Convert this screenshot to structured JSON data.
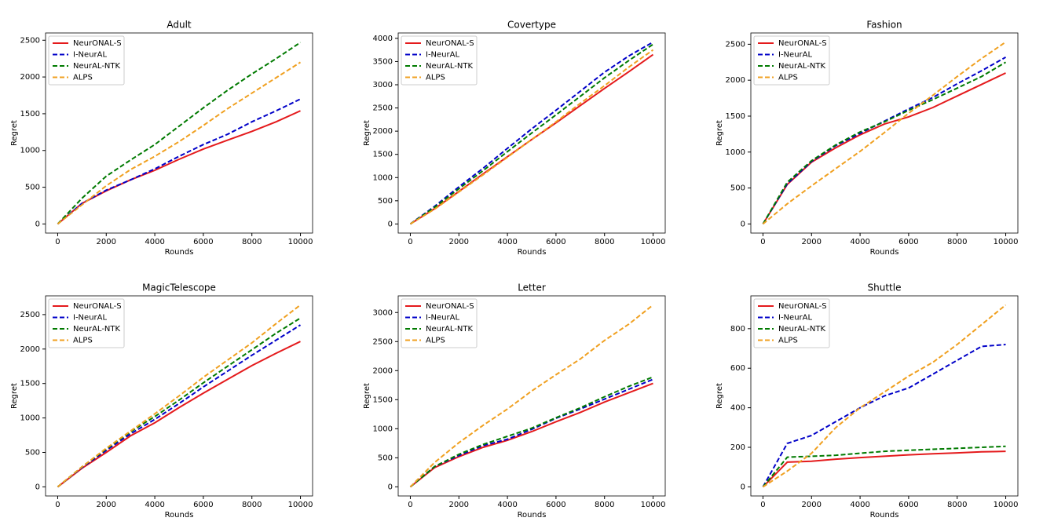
{
  "chart_data": [
    {
      "type": "line",
      "title": "Adult",
      "x_label": "Rounds",
      "y_label": "Regret",
      "x": [
        0,
        1000,
        2000,
        3000,
        4000,
        5000,
        6000,
        7000,
        8000,
        9000,
        10000
      ],
      "xlim": [
        -500,
        10500
      ],
      "xticks": [
        0,
        2000,
        4000,
        6000,
        8000,
        10000
      ],
      "ylim": [
        -124,
        2599
      ],
      "yticks": [
        0,
        500,
        1000,
        1500,
        2000,
        2500
      ],
      "legend": "upper left",
      "series": [
        {
          "name": "NeurONAL-S",
          "color": "#e41a1c",
          "linestyle": "solid",
          "values": [
            0,
            280,
            450,
            600,
            730,
            880,
            1020,
            1140,
            1260,
            1390,
            1540
          ]
        },
        {
          "name": "I-NeurAL",
          "color": "#0000c8",
          "linestyle": "dashed",
          "values": [
            0,
            280,
            460,
            600,
            750,
            920,
            1080,
            1220,
            1390,
            1540,
            1700
          ]
        },
        {
          "name": "NeurAL-NTK",
          "color": "#007a00",
          "linestyle": "dashed",
          "values": [
            0,
            350,
            650,
            870,
            1080,
            1330,
            1580,
            1820,
            2040,
            2250,
            2470
          ]
        },
        {
          "name": "ALPS",
          "color": "#f0a020",
          "linestyle": "dashed",
          "values": [
            0,
            260,
            520,
            740,
            920,
            1120,
            1340,
            1570,
            1780,
            1990,
            2200
          ]
        }
      ]
    },
    {
      "type": "line",
      "title": "Covertype",
      "x_label": "Rounds",
      "y_label": "Regret",
      "x": [
        0,
        1000,
        2000,
        3000,
        4000,
        5000,
        6000,
        7000,
        8000,
        9000,
        10000
      ],
      "xlim": [
        -500,
        10500
      ],
      "xticks": [
        0,
        2000,
        4000,
        6000,
        8000,
        10000
      ],
      "ylim": [
        -196,
        4116
      ],
      "yticks": [
        0,
        500,
        1000,
        1500,
        2000,
        2500,
        3000,
        3500,
        4000
      ],
      "legend": "upper left",
      "series": [
        {
          "name": "NeurONAL-S",
          "color": "#e41a1c",
          "linestyle": "solid",
          "values": [
            0,
            330,
            700,
            1080,
            1450,
            1820,
            2180,
            2550,
            2920,
            3280,
            3650
          ]
        },
        {
          "name": "I-NeurAL",
          "color": "#0000c8",
          "linestyle": "dashed",
          "values": [
            0,
            380,
            800,
            1200,
            1630,
            2050,
            2450,
            2860,
            3270,
            3620,
            3920
          ]
        },
        {
          "name": "NeurAL-NTK",
          "color": "#007a00",
          "linestyle": "dashed",
          "values": [
            0,
            360,
            760,
            1150,
            1560,
            1960,
            2350,
            2750,
            3150,
            3520,
            3870
          ]
        },
        {
          "name": "ALPS",
          "color": "#f0a020",
          "linestyle": "dashed",
          "values": [
            0,
            320,
            690,
            1060,
            1440,
            1820,
            2200,
            2600,
            2980,
            3380,
            3750
          ]
        }
      ]
    },
    {
      "type": "line",
      "title": "Fashion",
      "x_label": "Rounds",
      "y_label": "Regret",
      "x": [
        0,
        1000,
        2000,
        3000,
        4000,
        5000,
        6000,
        7000,
        8000,
        9000,
        10000
      ],
      "xlim": [
        -500,
        10500
      ],
      "xticks": [
        0,
        2000,
        4000,
        6000,
        8000,
        10000
      ],
      "ylim": [
        -127,
        2657
      ],
      "yticks": [
        0,
        500,
        1000,
        1500,
        2000,
        2500
      ],
      "legend": "upper left",
      "series": [
        {
          "name": "NeurONAL-S",
          "color": "#e41a1c",
          "linestyle": "solid",
          "values": [
            0,
            550,
            860,
            1060,
            1240,
            1390,
            1490,
            1620,
            1780,
            1940,
            2100
          ]
        },
        {
          "name": "I-NeurAL",
          "color": "#0000c8",
          "linestyle": "dashed",
          "values": [
            0,
            560,
            870,
            1090,
            1260,
            1430,
            1600,
            1760,
            1950,
            2130,
            2320
          ]
        },
        {
          "name": "NeurAL-NTK",
          "color": "#007a00",
          "linestyle": "dashed",
          "values": [
            0,
            580,
            880,
            1100,
            1280,
            1420,
            1580,
            1730,
            1890,
            2050,
            2250
          ]
        },
        {
          "name": "ALPS",
          "color": "#f0a020",
          "linestyle": "dashed",
          "values": [
            0,
            280,
            530,
            770,
            1010,
            1270,
            1540,
            1790,
            2050,
            2300,
            2530
          ]
        }
      ]
    },
    {
      "type": "line",
      "title": "MagicTelescope",
      "x_label": "Rounds",
      "y_label": "Regret",
      "x": [
        0,
        1000,
        2000,
        3000,
        4000,
        5000,
        6000,
        7000,
        8000,
        9000,
        10000
      ],
      "xlim": [
        -500,
        10500
      ],
      "xticks": [
        0,
        2000,
        4000,
        6000,
        8000,
        10000
      ],
      "ylim": [
        -132,
        2772
      ],
      "yticks": [
        0,
        500,
        1000,
        1500,
        2000,
        2500
      ],
      "legend": "upper left",
      "series": [
        {
          "name": "NeurONAL-S",
          "color": "#e41a1c",
          "linestyle": "solid",
          "values": [
            0,
            270,
            500,
            740,
            930,
            1150,
            1360,
            1560,
            1760,
            1940,
            2110
          ]
        },
        {
          "name": "I-NeurAL",
          "color": "#0000c8",
          "linestyle": "dashed",
          "values": [
            0,
            280,
            530,
            770,
            980,
            1210,
            1450,
            1680,
            1910,
            2130,
            2350
          ]
        },
        {
          "name": "NeurAL-NTK",
          "color": "#007a00",
          "linestyle": "dashed",
          "values": [
            0,
            290,
            550,
            800,
            1020,
            1260,
            1510,
            1750,
            1990,
            2230,
            2450
          ]
        },
        {
          "name": "ALPS",
          "color": "#f0a020",
          "linestyle": "dashed",
          "values": [
            0,
            290,
            560,
            810,
            1060,
            1320,
            1590,
            1840,
            2090,
            2370,
            2640
          ]
        }
      ]
    },
    {
      "type": "line",
      "title": "Letter",
      "x_label": "Rounds",
      "y_label": "Regret",
      "x": [
        0,
        1000,
        2000,
        3000,
        4000,
        5000,
        6000,
        7000,
        8000,
        9000,
        10000
      ],
      "xlim": [
        -500,
        10500
      ],
      "xticks": [
        0,
        2000,
        4000,
        6000,
        8000,
        10000
      ],
      "ylim": [
        -157,
        3287
      ],
      "yticks": [
        0,
        500,
        1000,
        1500,
        2000,
        2500,
        3000
      ],
      "legend": "upper left",
      "series": [
        {
          "name": "NeurONAL-S",
          "color": "#e41a1c",
          "linestyle": "solid",
          "values": [
            0,
            330,
            520,
            680,
            800,
            950,
            1120,
            1280,
            1460,
            1620,
            1780
          ]
        },
        {
          "name": "I-NeurAL",
          "color": "#0000c8",
          "linestyle": "dashed",
          "values": [
            0,
            350,
            540,
            710,
            820,
            990,
            1180,
            1340,
            1510,
            1680,
            1850
          ]
        },
        {
          "name": "NeurAL-NTK",
          "color": "#007a00",
          "linestyle": "dashed",
          "values": [
            0,
            350,
            560,
            730,
            870,
            1010,
            1190,
            1360,
            1550,
            1730,
            1890
          ]
        },
        {
          "name": "ALPS",
          "color": "#f0a020",
          "linestyle": "dashed",
          "values": [
            0,
            420,
            760,
            1060,
            1340,
            1650,
            1930,
            2200,
            2520,
            2800,
            3130
          ]
        }
      ]
    },
    {
      "type": "line",
      "title": "Shuttle",
      "x_label": "Rounds",
      "y_label": "Regret",
      "x": [
        0,
        1000,
        2000,
        3000,
        4000,
        5000,
        6000,
        7000,
        8000,
        9000,
        10000
      ],
      "xlim": [
        -500,
        10500
      ],
      "xticks": [
        0,
        2000,
        4000,
        6000,
        8000,
        10000
      ],
      "ylim": [
        -46,
        966
      ],
      "yticks": [
        0,
        200,
        400,
        600,
        800
      ],
      "legend": "upper left",
      "series": [
        {
          "name": "NeurONAL-S",
          "color": "#e41a1c",
          "linestyle": "solid",
          "values": [
            0,
            125,
            130,
            140,
            148,
            155,
            162,
            167,
            172,
            177,
            180
          ]
        },
        {
          "name": "I-NeurAL",
          "color": "#0000c8",
          "linestyle": "dashed",
          "values": [
            0,
            220,
            260,
            330,
            400,
            460,
            500,
            570,
            640,
            710,
            720
          ]
        },
        {
          "name": "NeurAL-NTK",
          "color": "#007a00",
          "linestyle": "dashed",
          "values": [
            0,
            150,
            155,
            160,
            170,
            180,
            185,
            190,
            195,
            200,
            205
          ]
        },
        {
          "name": "ALPS",
          "color": "#f0a020",
          "linestyle": "dashed",
          "values": [
            0,
            80,
            170,
            300,
            400,
            480,
            560,
            630,
            720,
            820,
            920
          ]
        }
      ]
    }
  ]
}
